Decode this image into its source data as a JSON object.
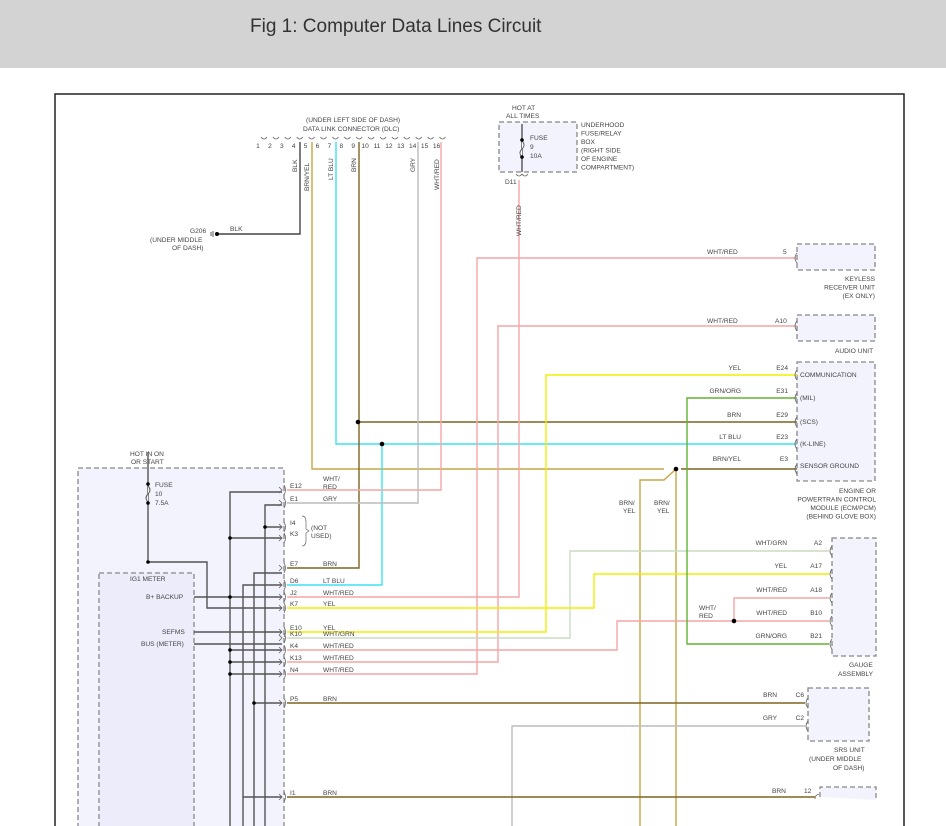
{
  "title": "Fig 1: Computer Data Lines Circuit",
  "wire_colors": {
    "WHT/RED": "#f4a6a6",
    "YEL": "#f2ee00",
    "LT BLU": "#3ae4f0",
    "BRN": "#7d6422",
    "BRN/YEL": "#c4a648",
    "GRY": "#bcbcbc",
    "GRN/ORG": "#62b234",
    "WHT/GRN": "#cadcc4",
    "BLK": "#444444"
  },
  "dlc": {
    "location": "(UNDER LEFT SIDE OF DASH)",
    "name": "DATA LINK CONNECTOR (DLC)",
    "pins": [
      "1",
      "2",
      "3",
      "4",
      "5",
      "6",
      "7",
      "8",
      "9",
      "10",
      "11",
      "12",
      "13",
      "14",
      "15",
      "16"
    ],
    "wires": {
      "blk": "BLK",
      "brn_yel": "BRN/YEL",
      "lt_blu": "LT BLU",
      "brn": "BRN",
      "gry": "GRY",
      "wht_red": "WHT/RED"
    }
  },
  "g206": {
    "id": "G206",
    "loc1": "(UNDER MIDDLE",
    "loc2": "OF DASH)",
    "wire": "BLK"
  },
  "fuse_box": {
    "hot1": "HOT AT",
    "hot2": "ALL TIMES",
    "fuse": "FUSE",
    "num": "9",
    "rating": "10A",
    "name": [
      "UNDERHOOD",
      "FUSE/RELAY",
      "BOX",
      "(RIGHT SIDE",
      "OF ENGINE",
      "COMPARTMENT)"
    ],
    "connector": "D11",
    "wire": "WHT/RED"
  },
  "keyless": {
    "pin": "5",
    "wire": "WHT/RED",
    "name": [
      "KEYLESS",
      "RECEIVER UNIT",
      "(EX ONLY)"
    ]
  },
  "audio": {
    "pin": "A10",
    "wire": "WHT/RED",
    "name": "AUDIO UNIT"
  },
  "ecm": {
    "pins": [
      {
        "pin": "E24",
        "wire": "YEL",
        "func": "COMMUNICATION"
      },
      {
        "pin": "E31",
        "wire": "GRN/ORG",
        "func": "(MIL)"
      },
      {
        "pin": "E29",
        "wire": "BRN",
        "func": "(SCS)"
      },
      {
        "pin": "E23",
        "wire": "LT BLU",
        "func": "(K-LINE)"
      },
      {
        "pin": "E3",
        "wire": "BRN/YEL",
        "func": "SENSOR GROUND"
      }
    ],
    "name": [
      "ENGINE OR",
      "POWERTRAIN CONTROL",
      "MODULE (ECM/PCM)",
      "(BEHIND GLOVE BOX)"
    ]
  },
  "splice_labels": {
    "brn_yel_a": [
      "BRN/",
      "YEL"
    ],
    "brn_yel_b": [
      "BRN/",
      "YEL"
    ],
    "wht_red": [
      "WHT/",
      "RED"
    ]
  },
  "gauge": {
    "pins": [
      {
        "pin": "A2",
        "wire": "WHT/GRN"
      },
      {
        "pin": "A17",
        "wire": "YEL"
      },
      {
        "pin": "A18",
        "wire": "WHT/RED"
      },
      {
        "pin": "B10",
        "wire": "WHT/RED"
      },
      {
        "pin": "B21",
        "wire": "GRN/ORG"
      }
    ],
    "name": [
      "GAUGE",
      "ASSEMBLY"
    ]
  },
  "srs": {
    "pins": [
      {
        "pin": "C6",
        "wire": "BRN"
      },
      {
        "pin": "C2",
        "wire": "GRY"
      }
    ],
    "name": [
      "SRS UNIT",
      "(UNDER MIDDLE",
      "OF DASH)"
    ]
  },
  "bottom": {
    "pin": "12",
    "wire": "BRN"
  },
  "ig1": {
    "hot1": "HOT IN ON",
    "hot2": "OR START",
    "fuse": "FUSE",
    "num": "10",
    "rating": "7.5A",
    "meter": "IG1 METER",
    "b_backup": "B+ BACKUP",
    "sefms": "SEFMS",
    "bus": "BUS (METER)",
    "not_used": [
      "(NOT",
      "USED)"
    ],
    "pins": [
      {
        "pin": "E12",
        "wire": "WHT/ RED"
      },
      {
        "pin": "E1",
        "wire": "GRY"
      },
      {
        "pin": "I4",
        "wire": ""
      },
      {
        "pin": "K3",
        "wire": ""
      },
      {
        "pin": "E7",
        "wire": "BRN"
      },
      {
        "pin": "D6",
        "wire": "LT BLU"
      },
      {
        "pin": "J2",
        "wire": "WHT/RED"
      },
      {
        "pin": "K7",
        "wire": "YEL"
      },
      {
        "pin": "E10",
        "wire": "YEL"
      },
      {
        "pin": "K10",
        "wire": "WHT/GRN"
      },
      {
        "pin": "K4",
        "wire": "WHT/RED"
      },
      {
        "pin": "K13",
        "wire": "WHT/RED"
      },
      {
        "pin": "N4",
        "wire": "WHT/RED"
      },
      {
        "pin": "P5",
        "wire": "BRN"
      },
      {
        "pin": "I1",
        "wire": "BRN"
      }
    ]
  }
}
